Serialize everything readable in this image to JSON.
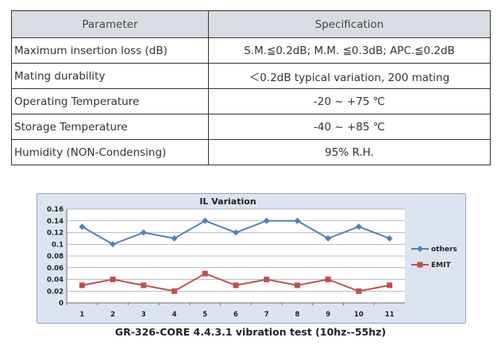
{
  "table": {
    "headers": [
      "Parameter",
      "Specification"
    ],
    "rows": [
      {
        "parameter": "Maximum insertion loss (dB)",
        "specification": "S.M.≦0.2dB; M.M. ≦0.3dB; APC.≦0.2dB"
      },
      {
        "parameter": "Mating durability",
        "specification": "＜0.2dB typical variation, 200 mating"
      },
      {
        "parameter": "Operating Temperature",
        "specification": "-20 ~ +75 ℃"
      },
      {
        "parameter": "Storage Temperature",
        "specification": "-40 ~ +85 ℃"
      },
      {
        "parameter": "Humidity (NON-Condensing)",
        "specification": "95% R.H."
      }
    ]
  },
  "chart_caption": "GR-326-CORE 4.4.3.1 vibration test (10hz--55hz)",
  "chart_data": {
    "type": "line",
    "title": "IL Variation",
    "xlabel": "",
    "ylabel": "",
    "categories": [
      "1",
      "2",
      "3",
      "4",
      "5",
      "6",
      "7",
      "8",
      "9",
      "10",
      "11"
    ],
    "y_ticks": [
      "0",
      "0.02",
      "0.04",
      "0.06",
      "0.08",
      "0.1",
      "0.12",
      "0.14",
      "0.16"
    ],
    "ylim": [
      0,
      0.16
    ],
    "grid": "horizontal",
    "legend": "right",
    "series": [
      {
        "name": "others",
        "color": "#4f81bd",
        "marker": "diamond",
        "values": [
          0.13,
          0.1,
          0.12,
          0.11,
          0.14,
          0.12,
          0.14,
          0.14,
          0.11,
          0.13,
          0.11
        ]
      },
      {
        "name": "EMIT",
        "color": "#c0504d",
        "marker": "square",
        "values": [
          0.03,
          0.04,
          0.03,
          0.02,
          0.05,
          0.03,
          0.04,
          0.03,
          0.04,
          0.02,
          0.03
        ]
      }
    ],
    "colors": {
      "frame_bg": "#dbe5f1",
      "plot_bg": "#ffffff",
      "grid": "#9aa4b0"
    }
  }
}
